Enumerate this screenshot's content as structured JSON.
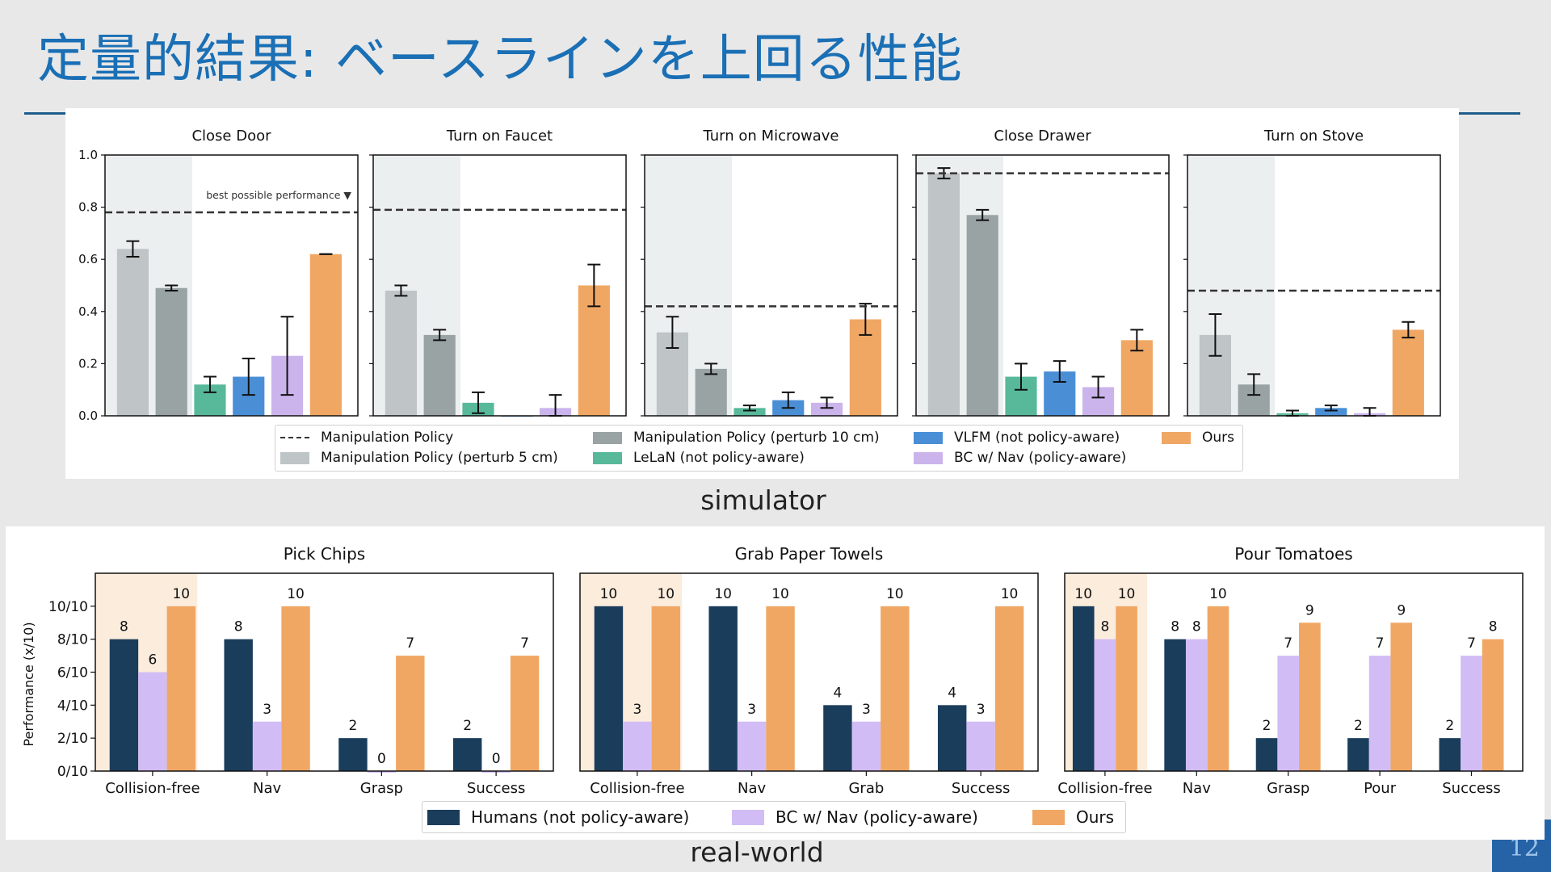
{
  "slide": {
    "title": "定量的結果: ベースラインを上回る性能",
    "page_number": "12",
    "sim_caption": "simulator",
    "real_caption": "real-world"
  },
  "colors": {
    "title": "#1a6fb5",
    "perturb5": "#bfc4c6",
    "perturb10": "#99a3a4",
    "lelan": "#58b99a",
    "vlfm": "#4a8fd6",
    "bcnav": "#cbb4ec",
    "ours": "#f0a764",
    "humans": "#1b3d5c",
    "bcnav_real": "#d2bcf5",
    "shade_sim": "#eceff0",
    "shade_real": "#fbecdc"
  },
  "sim_legend": [
    {
      "label": "Manipulation Policy",
      "type": "dash"
    },
    {
      "label": "Manipulation Policy (perturb 5 cm)",
      "color": "#bfc4c6"
    },
    {
      "label": "Manipulation Policy (perturb 10 cm)",
      "color": "#99a3a4"
    },
    {
      "label": "LeLaN (not policy-aware)",
      "color": "#58b99a"
    },
    {
      "label": "VLFM (not policy-aware)",
      "color": "#4a8fd6"
    },
    {
      "label": "BC w/ Nav (policy-aware)",
      "color": "#cbb4ec"
    },
    {
      "label": "Ours",
      "color": "#f0a764"
    }
  ],
  "real_legend": [
    {
      "label": "Humans (not policy-aware)",
      "color": "#1b3d5c"
    },
    {
      "label": "BC w/ Nav (policy-aware)",
      "color": "#d2bcf5"
    },
    {
      "label": "Ours",
      "color": "#f0a764"
    }
  ],
  "chart_data": [
    {
      "type": "bar",
      "group": "simulator",
      "ylim": [
        0,
        1.0
      ],
      "yticks": [
        "0.0",
        "0.2",
        "0.4",
        "0.6",
        "0.8",
        "1.0"
      ],
      "annotation": "best possible performance ▼",
      "series_names": [
        "Manipulation Policy (perturb 5 cm)",
        "Manipulation Policy (perturb 10 cm)",
        "LeLaN (not policy-aware)",
        "VLFM (not policy-aware)",
        "BC w/ Nav (policy-aware)",
        "Ours"
      ],
      "reference_line": "Manipulation Policy",
      "panels": [
        {
          "title": "Close Door",
          "reference": 0.78,
          "values": [
            0.64,
            0.49,
            0.12,
            0.15,
            0.23,
            0.62
          ],
          "errors": [
            0.03,
            0.01,
            0.03,
            0.07,
            0.15,
            0.0
          ]
        },
        {
          "title": "Turn on Faucet",
          "reference": 0.79,
          "values": [
            0.48,
            0.31,
            0.05,
            0.0,
            0.03,
            0.5
          ],
          "errors": [
            0.02,
            0.02,
            0.04,
            0.0,
            0.05,
            0.08
          ]
        },
        {
          "title": "Turn on Microwave",
          "reference": 0.42,
          "values": [
            0.32,
            0.18,
            0.03,
            0.06,
            0.05,
            0.37
          ],
          "errors": [
            0.06,
            0.02,
            0.01,
            0.03,
            0.02,
            0.06
          ]
        },
        {
          "title": "Close Drawer",
          "reference": 0.93,
          "values": [
            0.93,
            0.77,
            0.15,
            0.17,
            0.11,
            0.29
          ],
          "errors": [
            0.02,
            0.02,
            0.05,
            0.04,
            0.04,
            0.04
          ]
        },
        {
          "title": "Turn on Stove",
          "reference": 0.48,
          "values": [
            0.31,
            0.12,
            0.01,
            0.03,
            0.01,
            0.33
          ],
          "errors": [
            0.08,
            0.04,
            0.01,
            0.01,
            0.02,
            0.03
          ]
        }
      ]
    },
    {
      "type": "bar",
      "group": "real-world",
      "ylabel": "Performance (x/10)",
      "ylim": [
        0,
        12
      ],
      "yticks": [
        "0/10",
        "2/10",
        "4/10",
        "6/10",
        "8/10",
        "10/10"
      ],
      "series_names": [
        "Humans (not policy-aware)",
        "BC w/ Nav (policy-aware)",
        "Ours"
      ],
      "panels": [
        {
          "title": "Pick Chips",
          "categories": [
            "Collision-free",
            "Nav",
            "Grasp",
            "Success"
          ],
          "series": [
            {
              "name": "Humans (not policy-aware)",
              "values": [
                8,
                8,
                2,
                2
              ]
            },
            {
              "name": "BC w/ Nav (policy-aware)",
              "values": [
                6,
                3,
                0,
                0
              ]
            },
            {
              "name": "Ours",
              "values": [
                10,
                10,
                7,
                7
              ]
            }
          ]
        },
        {
          "title": "Grab Paper Towels",
          "categories": [
            "Collision-free",
            "Nav",
            "Grab",
            "Success"
          ],
          "series": [
            {
              "name": "Humans (not policy-aware)",
              "values": [
                10,
                10,
                4,
                4
              ]
            },
            {
              "name": "BC w/ Nav (policy-aware)",
              "values": [
                3,
                3,
                3,
                3
              ]
            },
            {
              "name": "Ours",
              "values": [
                10,
                10,
                10,
                10
              ]
            }
          ]
        },
        {
          "title": "Pour Tomatoes",
          "categories": [
            "Collision-free",
            "Nav",
            "Grasp",
            "Pour",
            "Success"
          ],
          "series": [
            {
              "name": "Humans (not policy-aware)",
              "values": [
                10,
                8,
                2,
                2,
                2
              ]
            },
            {
              "name": "BC w/ Nav (policy-aware)",
              "values": [
                8,
                8,
                7,
                7,
                7
              ]
            },
            {
              "name": "Ours",
              "values": [
                10,
                10,
                9,
                9,
                8
              ]
            }
          ]
        }
      ]
    }
  ]
}
